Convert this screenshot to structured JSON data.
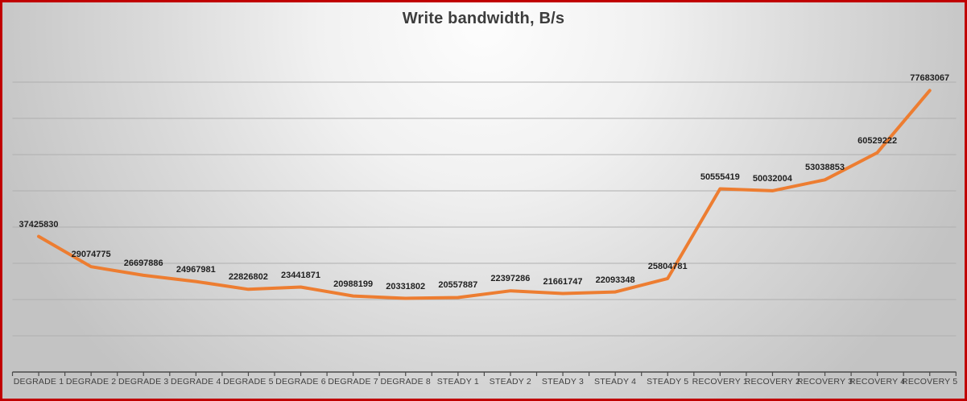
{
  "chart_data": {
    "type": "line",
    "title": "Write bandwidth, B/s",
    "categories": [
      "DEGRADE 1",
      "DEGRADE 2",
      "DEGRADE 3",
      "DEGRADE 4",
      "DEGRADE 5",
      "DEGRADE 6",
      "DEGRADE 7",
      "DEGRADE 8",
      "STEADY 1",
      "STEADY 2",
      "STEADY 3",
      "STEADY 4",
      "STEADY 5",
      "RECOVERY 1",
      "RECOVERY 2",
      "RECOVERY 3",
      "RECOVERY 4",
      "RECOVERY 5"
    ],
    "values": [
      37425830,
      29074775,
      26697886,
      24967981,
      22826802,
      23441871,
      20988199,
      20331802,
      20557887,
      22397286,
      21661747,
      22093348,
      25804781,
      50555419,
      50032004,
      53038853,
      60529222,
      77683067
    ],
    "xlabel": "",
    "ylabel": "",
    "ylim": [
      0,
      80000000
    ],
    "y_gridline_interval": 10000000,
    "grid": true,
    "legend": false,
    "data_labels": "above points",
    "y_axis_labels_visible": false
  },
  "colors": {
    "line": "#ED7D31",
    "frame_border": "#C00000",
    "gridline": "#AFAFAF",
    "axis": "#4A4A4A",
    "title_text": "#3D3D3D",
    "data_label_text": "#1F1F1F",
    "axis_label_text": "#3F3F3F"
  }
}
